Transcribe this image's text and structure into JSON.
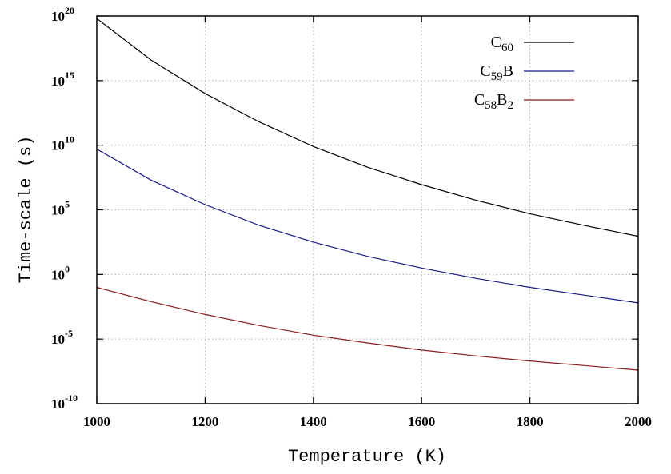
{
  "chart_data": {
    "type": "line",
    "title": "",
    "xlabel": "Temperature (K)",
    "ylabel": "Time-scale (s)",
    "xlim": [
      1000,
      2000
    ],
    "ylim_exponent": [
      -10,
      20
    ],
    "yscale": "log",
    "grid": true,
    "legend_position": "top-right",
    "x_ticks": [
      "1000",
      "1200",
      "1400",
      "1600",
      "1800",
      "2000"
    ],
    "y_ticks": [
      {
        "base": "10",
        "exp": "20"
      },
      {
        "base": "10",
        "exp": "15"
      },
      {
        "base": "10",
        "exp": "10"
      },
      {
        "base": "10",
        "exp": "5"
      },
      {
        "base": "10",
        "exp": "0"
      },
      {
        "base": "10",
        "exp": "-5"
      },
      {
        "base": "10",
        "exp": "-10"
      }
    ],
    "x": [
      1000,
      1100,
      1200,
      1300,
      1400,
      1500,
      1600,
      1700,
      1800,
      1900,
      2000
    ],
    "series": [
      {
        "name": "C60",
        "label_parts": [
          {
            "t": "C"
          },
          {
            "t": "60",
            "sub": true
          }
        ],
        "color": "#000000",
        "log10_values": [
          19.8,
          16.6,
          14.0,
          11.8,
          9.9,
          8.3,
          6.95,
          5.75,
          4.7,
          3.8,
          2.95
        ]
      },
      {
        "name": "C59B",
        "label_parts": [
          {
            "t": "C"
          },
          {
            "t": "59",
            "sub": true
          },
          {
            "t": "B"
          }
        ],
        "color": "#1a1a8c",
        "log10_values": [
          9.7,
          7.3,
          5.4,
          3.8,
          2.5,
          1.4,
          0.5,
          -0.3,
          -1.0,
          -1.6,
          -2.2
        ]
      },
      {
        "name": "C58B2",
        "label_parts": [
          {
            "t": "C"
          },
          {
            "t": "58",
            "sub": true
          },
          {
            "t": "B"
          },
          {
            "t": "2",
            "sub": true
          }
        ],
        "color": "#8b1a1a",
        "log10_values": [
          -1.0,
          -2.1,
          -3.1,
          -3.95,
          -4.7,
          -5.3,
          -5.85,
          -6.3,
          -6.7,
          -7.05,
          -7.4
        ]
      }
    ]
  }
}
